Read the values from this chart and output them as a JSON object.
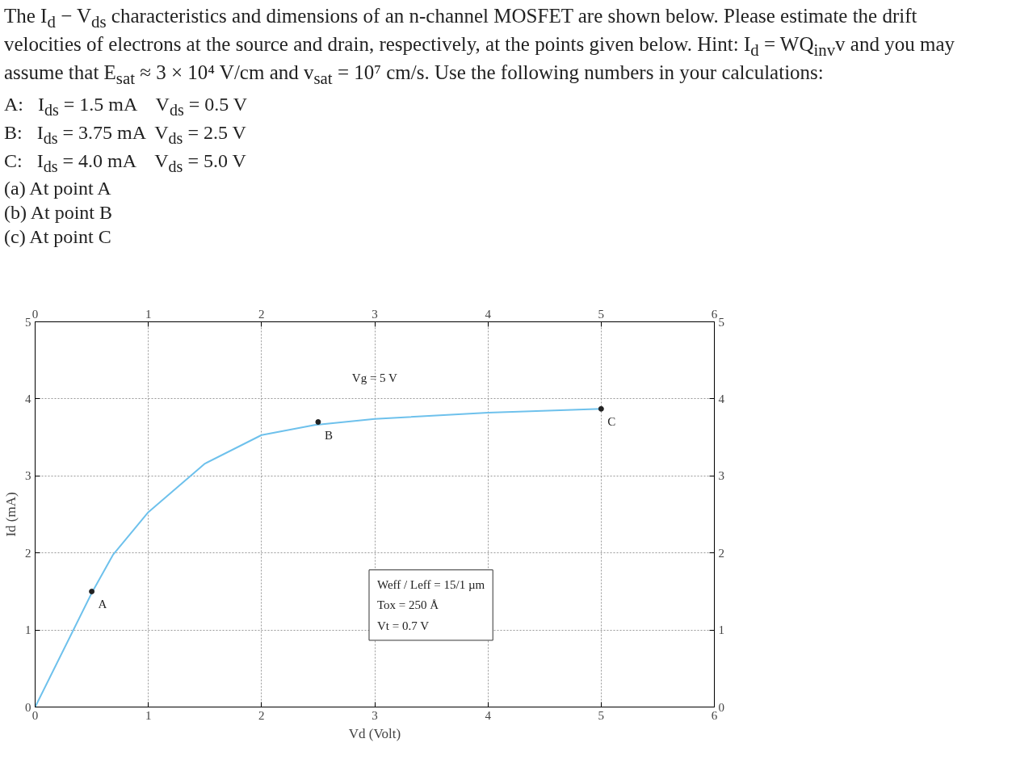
{
  "chart_data": {
    "type": "line",
    "title": "The I$_{d}$ − V$_{ds}$ characteristics and dimensions of an n-channel MOSFET are shown below. Please estimate the drift velocities of electrons at the source and drain, respectively, at the points given below. Hint: I$_{d}$ = WQ$_{inv}$v and you may assume that E$_{sat}$ ≈ 3 × 10⁴ V/cm and v$_{sat}$ = 10⁷ cm/s. Use the following numbers in your calculations:",
    "subtitle": "A:   I$_{ds}$ = 1.5 mA    V$_{ds}$ = 0.5 V\nB:   I$_{ds}$ = 3.75 mA  V$_{ds}$ = 2.5 V\nC:   I$_{ds}$ = 4.0 mA    V$_{ds}$ = 5.0 V\n(a) At point A\n(b) At point B\n(c) At point C",
    "xlabel": "Vd (Volt)",
    "ylabel": "Id (mA)",
    "series": [
      {
        "name": "Vg = 5 V",
        "color": "#6ec1ec",
        "x": [
          0,
          0.5,
          0.69,
          1.0,
          1.5,
          2.0,
          2.47,
          3.0,
          4.0,
          5.0
        ],
        "values": [
          0,
          1.48,
          1.98,
          2.53,
          3.16,
          3.53,
          3.66,
          3.74,
          3.82,
          3.87
        ]
      },
      {
        "type": "scatter",
        "color": "#222222",
        "x": [
          0.5,
          2.5,
          5.0
        ],
        "values": [
          1.5,
          3.7,
          3.87
        ]
      }
    ],
    "annotations": [
      {
        "text": "A",
        "x": 0.5,
        "y": 1.5
      },
      {
        "text": "B",
        "x": 2.5,
        "y": 3.7
      },
      {
        "text": "C",
        "x": 5.0,
        "y": 3.87
      },
      "Weff / Leff = 15/1 µm",
      "Tox = 250 Å",
      "Vt = 0.7 V"
    ],
    "xlim": [
      0,
      6
    ],
    "ylim": [
      0,
      5
    ],
    "xticks": [
      0,
      1,
      2,
      3,
      4,
      5,
      6
    ],
    "yticks": [
      0,
      1,
      2,
      3,
      4,
      5
    ],
    "x2lim": [
      0,
      6
    ],
    "x2ticks": [
      0,
      1,
      2,
      3,
      4,
      5,
      6
    ],
    "y2lim": [
      0,
      5
    ],
    "y2ticks": [
      0,
      1,
      2,
      3,
      4,
      5
    ],
    "grid": true,
    "marker": "none",
    "line_style": "solid"
  }
}
